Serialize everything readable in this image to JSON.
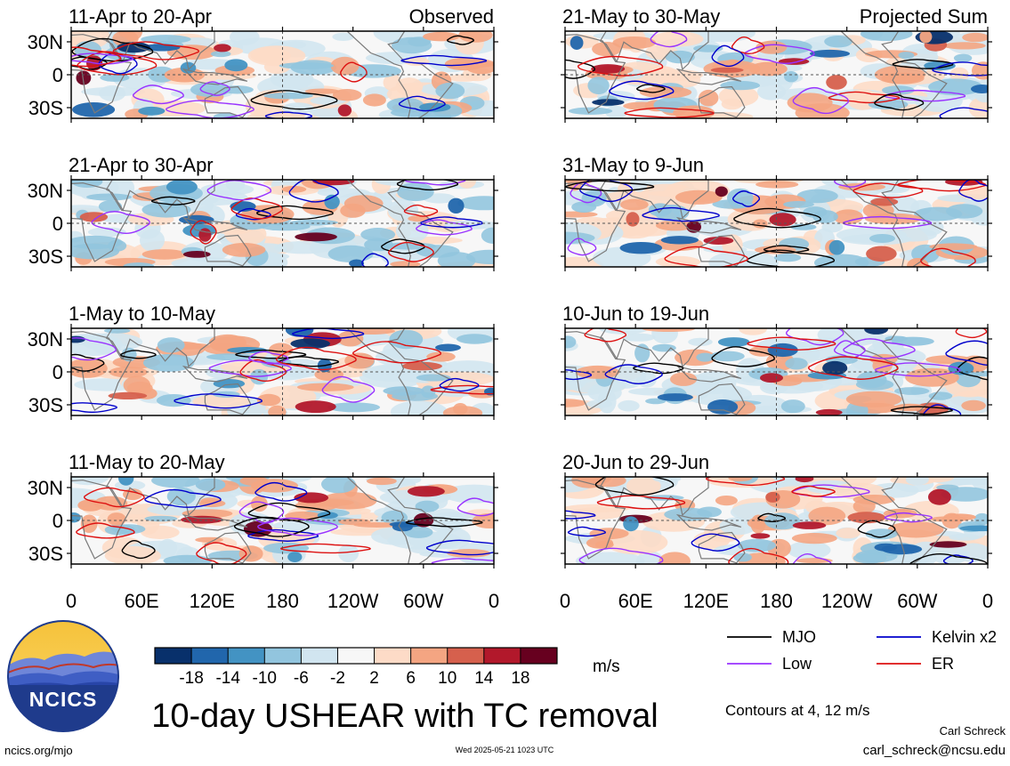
{
  "panels": [
    {
      "title": "11-Apr to 20-Apr",
      "tag": "Observed"
    },
    {
      "title": "21-Apr to 30-Apr",
      "tag": ""
    },
    {
      "title": "1-May to 10-May",
      "tag": ""
    },
    {
      "title": "11-May to 20-May",
      "tag": ""
    },
    {
      "title": "21-May to 30-May",
      "tag": "Projected Sum"
    },
    {
      "title": "31-May to 9-Jun",
      "tag": ""
    },
    {
      "title": "10-Jun to 19-Jun",
      "tag": ""
    },
    {
      "title": "20-Jun to 29-Jun",
      "tag": ""
    }
  ],
  "lat_labels": [
    "30N",
    "0",
    "30S"
  ],
  "lon_labels": [
    "0",
    "60E",
    "120E",
    "180",
    "120W",
    "60W",
    "0"
  ],
  "colorbar": {
    "tick_labels": [
      "-18",
      "-14",
      "-10",
      "-6",
      "-2",
      "2",
      "6",
      "10",
      "14",
      "18"
    ],
    "colors": [
      "#08306b",
      "#2166ac",
      "#4393c3",
      "#92c5de",
      "#d1e5f0",
      "#f7f7f7",
      "#fddbc7",
      "#f4a582",
      "#d6604d",
      "#b2182b",
      "#67001f"
    ],
    "unit": "m/s"
  },
  "legend": {
    "items": [
      {
        "label": "MJO",
        "color": "#000000"
      },
      {
        "label": "Kelvin x2",
        "color": "#0000cc"
      },
      {
        "label": "Low",
        "color": "#9933ff"
      },
      {
        "label": "ER",
        "color": "#dd1111"
      }
    ],
    "contours_note": "Contours at 4, 12 m/s"
  },
  "main_title": "10-day USHEAR with TC removal",
  "logo_text": "NCICS",
  "footer": {
    "left": "ncics.org/mjo",
    "center": "Wed 2025-05-21 1023 UTC",
    "author": "Carl Schreck",
    "email": "carl_schreck@ncsu.edu"
  }
}
